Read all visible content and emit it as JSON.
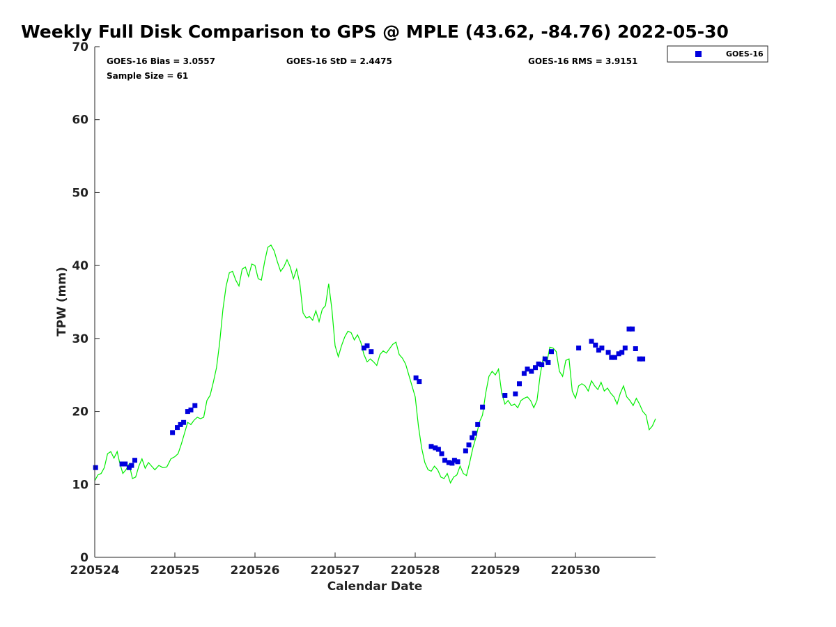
{
  "chart_data": {
    "type": "line",
    "title": "Weekly Full Disk Comparison to GPS @ MPLE (43.62, -84.76) 2022-05-30",
    "xlabel": "Calendar Date",
    "ylabel": "TPW (mm)",
    "xlim": [
      0,
      7
    ],
    "ylim": [
      0,
      70
    ],
    "y_ticks": [
      0,
      10,
      20,
      30,
      40,
      50,
      60,
      70
    ],
    "x_ticks": [
      0,
      1,
      2,
      3,
      4,
      5,
      6
    ],
    "x_tick_labels": [
      "220524",
      "220525",
      "220526",
      "220527",
      "220528",
      "220529",
      "220530"
    ],
    "stats": {
      "bias": "GOES-16 Bias = 3.0557",
      "std": "GOES-16 StD = 2.4475",
      "rms": "GOES-16 RMS = 3.9151",
      "sample": "Sample Size = 61"
    },
    "legend": {
      "position": "top-right-outside",
      "entries": [
        "GOES-16"
      ]
    },
    "colors": {
      "gps_line": "#00ee00",
      "goes_points": "#0000dd"
    },
    "series": [
      {
        "name": "GPS",
        "kind": "line",
        "points": [
          [
            0.0,
            10.5
          ],
          [
            0.04,
            11.3
          ],
          [
            0.08,
            11.5
          ],
          [
            0.12,
            12.3
          ],
          [
            0.16,
            14.2
          ],
          [
            0.2,
            14.5
          ],
          [
            0.24,
            13.6
          ],
          [
            0.28,
            14.5
          ],
          [
            0.31,
            13.0
          ],
          [
            0.35,
            11.5
          ],
          [
            0.39,
            12.0
          ],
          [
            0.43,
            12.8
          ],
          [
            0.47,
            10.8
          ],
          [
            0.51,
            11.0
          ],
          [
            0.55,
            12.5
          ],
          [
            0.59,
            13.5
          ],
          [
            0.63,
            12.2
          ],
          [
            0.67,
            13.0
          ],
          [
            0.71,
            12.5
          ],
          [
            0.75,
            12.0
          ],
          [
            0.8,
            12.6
          ],
          [
            0.85,
            12.3
          ],
          [
            0.9,
            12.4
          ],
          [
            0.95,
            13.5
          ],
          [
            1.0,
            13.8
          ],
          [
            1.04,
            14.2
          ],
          [
            1.08,
            15.5
          ],
          [
            1.12,
            17.0
          ],
          [
            1.16,
            18.5
          ],
          [
            1.2,
            18.2
          ],
          [
            1.24,
            18.8
          ],
          [
            1.28,
            19.2
          ],
          [
            1.32,
            19.0
          ],
          [
            1.36,
            19.2
          ],
          [
            1.4,
            21.5
          ],
          [
            1.44,
            22.2
          ],
          [
            1.48,
            24.0
          ],
          [
            1.52,
            26.0
          ],
          [
            1.56,
            29.5
          ],
          [
            1.6,
            34.0
          ],
          [
            1.64,
            37.2
          ],
          [
            1.68,
            39.0
          ],
          [
            1.72,
            39.2
          ],
          [
            1.76,
            38.0
          ],
          [
            1.8,
            37.2
          ],
          [
            1.84,
            39.5
          ],
          [
            1.88,
            39.8
          ],
          [
            1.92,
            38.5
          ],
          [
            1.96,
            40.2
          ],
          [
            2.0,
            40.0
          ],
          [
            2.04,
            38.2
          ],
          [
            2.08,
            38.0
          ],
          [
            2.12,
            40.5
          ],
          [
            2.16,
            42.5
          ],
          [
            2.2,
            42.8
          ],
          [
            2.24,
            42.0
          ],
          [
            2.28,
            40.5
          ],
          [
            2.32,
            39.2
          ],
          [
            2.36,
            39.8
          ],
          [
            2.4,
            40.8
          ],
          [
            2.44,
            39.8
          ],
          [
            2.48,
            38.2
          ],
          [
            2.52,
            39.5
          ],
          [
            2.56,
            37.5
          ],
          [
            2.6,
            33.5
          ],
          [
            2.64,
            32.8
          ],
          [
            2.68,
            33.0
          ],
          [
            2.72,
            32.5
          ],
          [
            2.76,
            33.8
          ],
          [
            2.8,
            32.3
          ],
          [
            2.84,
            34.0
          ],
          [
            2.88,
            34.5
          ],
          [
            2.92,
            37.5
          ],
          [
            2.96,
            34.0
          ],
          [
            3.0,
            29.0
          ],
          [
            3.04,
            27.5
          ],
          [
            3.08,
            29.0
          ],
          [
            3.12,
            30.2
          ],
          [
            3.16,
            31.0
          ],
          [
            3.2,
            30.8
          ],
          [
            3.24,
            29.8
          ],
          [
            3.28,
            30.5
          ],
          [
            3.32,
            29.5
          ],
          [
            3.36,
            27.8
          ],
          [
            3.4,
            26.8
          ],
          [
            3.44,
            27.2
          ],
          [
            3.48,
            26.8
          ],
          [
            3.52,
            26.3
          ],
          [
            3.56,
            27.8
          ],
          [
            3.6,
            28.3
          ],
          [
            3.64,
            28.0
          ],
          [
            3.68,
            28.6
          ],
          [
            3.72,
            29.2
          ],
          [
            3.76,
            29.5
          ],
          [
            3.8,
            27.8
          ],
          [
            3.84,
            27.3
          ],
          [
            3.88,
            26.5
          ],
          [
            3.92,
            25.0
          ],
          [
            3.96,
            23.5
          ],
          [
            4.0,
            22.0
          ],
          [
            4.04,
            18.0
          ],
          [
            4.08,
            15.0
          ],
          [
            4.12,
            13.0
          ],
          [
            4.16,
            12.0
          ],
          [
            4.2,
            11.8
          ],
          [
            4.24,
            12.5
          ],
          [
            4.28,
            12.0
          ],
          [
            4.32,
            11.0
          ],
          [
            4.36,
            10.8
          ],
          [
            4.4,
            11.5
          ],
          [
            4.44,
            10.2
          ],
          [
            4.48,
            11.0
          ],
          [
            4.52,
            11.3
          ],
          [
            4.56,
            12.5
          ],
          [
            4.6,
            11.5
          ],
          [
            4.64,
            11.2
          ],
          [
            4.68,
            13.0
          ],
          [
            4.72,
            15.0
          ],
          [
            4.76,
            16.5
          ],
          [
            4.8,
            18.5
          ],
          [
            4.84,
            19.5
          ],
          [
            4.88,
            22.5
          ],
          [
            4.92,
            24.8
          ],
          [
            4.96,
            25.5
          ],
          [
            5.0,
            25.0
          ],
          [
            5.04,
            25.8
          ],
          [
            5.08,
            22.5
          ],
          [
            5.12,
            21.0
          ],
          [
            5.16,
            21.5
          ],
          [
            5.2,
            20.8
          ],
          [
            5.24,
            21.0
          ],
          [
            5.28,
            20.5
          ],
          [
            5.32,
            21.5
          ],
          [
            5.36,
            21.8
          ],
          [
            5.4,
            22.0
          ],
          [
            5.44,
            21.5
          ],
          [
            5.48,
            20.5
          ],
          [
            5.52,
            21.5
          ],
          [
            5.56,
            25.0
          ],
          [
            5.6,
            27.5
          ],
          [
            5.64,
            26.5
          ],
          [
            5.68,
            28.8
          ],
          [
            5.72,
            28.7
          ],
          [
            5.76,
            28.2
          ],
          [
            5.8,
            25.5
          ],
          [
            5.84,
            24.8
          ],
          [
            5.88,
            27.0
          ],
          [
            5.92,
            27.2
          ],
          [
            5.96,
            22.8
          ],
          [
            6.0,
            21.8
          ],
          [
            6.04,
            23.5
          ],
          [
            6.08,
            23.8
          ],
          [
            6.12,
            23.5
          ],
          [
            6.16,
            22.8
          ],
          [
            6.2,
            24.2
          ],
          [
            6.24,
            23.5
          ],
          [
            6.28,
            23.0
          ],
          [
            6.32,
            24.0
          ],
          [
            6.36,
            22.8
          ],
          [
            6.4,
            23.2
          ],
          [
            6.44,
            22.5
          ],
          [
            6.48,
            22.0
          ],
          [
            6.52,
            21.0
          ],
          [
            6.56,
            22.5
          ],
          [
            6.6,
            23.5
          ],
          [
            6.64,
            22.0
          ],
          [
            6.68,
            21.5
          ],
          [
            6.72,
            20.8
          ],
          [
            6.76,
            21.8
          ],
          [
            6.8,
            21.0
          ],
          [
            6.84,
            20.0
          ],
          [
            6.88,
            19.5
          ],
          [
            6.92,
            17.5
          ],
          [
            6.96,
            18.0
          ],
          [
            7.0,
            19.0
          ]
        ]
      },
      {
        "name": "GOES-16",
        "kind": "scatter",
        "points": [
          [
            0.01,
            12.3
          ],
          [
            0.34,
            12.8
          ],
          [
            0.38,
            12.8
          ],
          [
            0.43,
            12.3
          ],
          [
            0.46,
            12.6
          ],
          [
            0.5,
            13.3
          ],
          [
            0.97,
            17.1
          ],
          [
            1.03,
            17.8
          ],
          [
            1.07,
            18.2
          ],
          [
            1.11,
            18.5
          ],
          [
            1.16,
            20.0
          ],
          [
            1.2,
            20.2
          ],
          [
            1.25,
            20.8
          ],
          [
            3.36,
            28.7
          ],
          [
            3.4,
            29.0
          ],
          [
            3.45,
            28.2
          ],
          [
            4.01,
            24.6
          ],
          [
            4.05,
            24.1
          ],
          [
            4.2,
            15.2
          ],
          [
            4.25,
            15.0
          ],
          [
            4.29,
            14.8
          ],
          [
            4.33,
            14.2
          ],
          [
            4.37,
            13.3
          ],
          [
            4.42,
            13.0
          ],
          [
            4.46,
            12.9
          ],
          [
            4.49,
            13.3
          ],
          [
            4.53,
            13.1
          ],
          [
            4.63,
            14.6
          ],
          [
            4.67,
            15.4
          ],
          [
            4.71,
            16.4
          ],
          [
            4.74,
            17.0
          ],
          [
            4.78,
            18.2
          ],
          [
            4.84,
            20.6
          ],
          [
            5.12,
            22.2
          ],
          [
            5.25,
            22.4
          ],
          [
            5.3,
            23.8
          ],
          [
            5.36,
            25.2
          ],
          [
            5.4,
            25.8
          ],
          [
            5.45,
            25.5
          ],
          [
            5.5,
            26.0
          ],
          [
            5.54,
            26.5
          ],
          [
            5.58,
            26.4
          ],
          [
            5.62,
            27.2
          ],
          [
            5.66,
            26.7
          ],
          [
            5.7,
            28.2
          ],
          [
            6.04,
            28.7
          ],
          [
            6.2,
            29.6
          ],
          [
            6.25,
            29.1
          ],
          [
            6.29,
            28.4
          ],
          [
            6.33,
            28.7
          ],
          [
            6.41,
            28.1
          ],
          [
            6.45,
            27.4
          ],
          [
            6.49,
            27.4
          ],
          [
            6.54,
            27.9
          ],
          [
            6.58,
            28.1
          ],
          [
            6.62,
            28.7
          ],
          [
            6.67,
            31.3
          ],
          [
            6.71,
            31.3
          ],
          [
            6.75,
            28.6
          ],
          [
            6.8,
            27.2
          ],
          [
            6.84,
            27.2
          ]
        ]
      }
    ]
  }
}
